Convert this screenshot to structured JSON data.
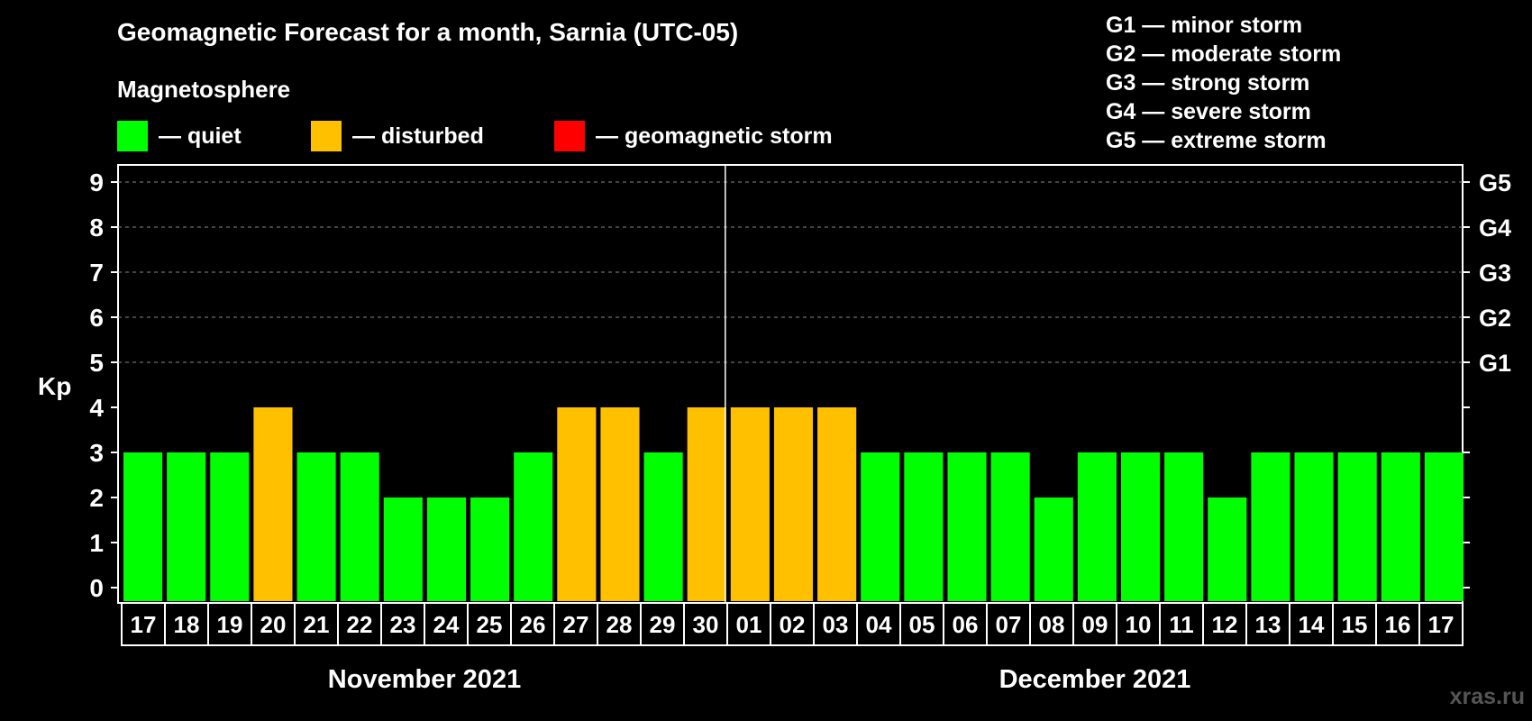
{
  "title": "Geomagnetic Forecast for a month, Sarnia (UTC-05)",
  "magnetosphere_label": "Magnetosphere",
  "legend": [
    {
      "label": "— quiet",
      "color": "#00ff00"
    },
    {
      "label": "— disturbed",
      "color": "#ffc000"
    },
    {
      "label": "— geomagnetic storm",
      "color": "#ff0000"
    }
  ],
  "g_scale": [
    "G1 — minor storm",
    "G2 — moderate storm",
    "G3 — strong storm",
    "G4 — severe storm",
    "G5 — extreme storm"
  ],
  "watermark": "xras.ru",
  "chart_data": {
    "type": "bar",
    "ylabel": "Kp",
    "ylim": [
      0,
      9
    ],
    "y_ticks": [
      0,
      1,
      2,
      3,
      4,
      5,
      6,
      7,
      8,
      9
    ],
    "right_axis_labels": [
      {
        "kp": 5,
        "label": "G1"
      },
      {
        "kp": 6,
        "label": "G2"
      },
      {
        "kp": 7,
        "label": "G3"
      },
      {
        "kp": 8,
        "label": "G4"
      },
      {
        "kp": 9,
        "label": "G5"
      }
    ],
    "grid": "dashed horizontal at Kp 5–9",
    "month_groups": [
      {
        "label": "November 2021",
        "start": 0,
        "end": 13
      },
      {
        "label": "December 2021",
        "start": 14,
        "end": 30
      }
    ],
    "categories": [
      "17",
      "18",
      "19",
      "20",
      "21",
      "22",
      "23",
      "24",
      "25",
      "26",
      "27",
      "28",
      "29",
      "30",
      "01",
      "02",
      "03",
      "04",
      "05",
      "06",
      "07",
      "08",
      "09",
      "10",
      "11",
      "12",
      "13",
      "14",
      "15",
      "16",
      "17"
    ],
    "values": [
      3,
      3,
      3,
      4,
      3,
      3,
      2,
      2,
      2,
      3,
      4,
      4,
      3,
      4,
      4,
      4,
      4,
      3,
      3,
      3,
      3,
      2,
      3,
      3,
      3,
      2,
      3,
      3,
      3,
      3,
      3
    ],
    "status": [
      "quiet",
      "quiet",
      "quiet",
      "disturbed",
      "quiet",
      "quiet",
      "quiet",
      "quiet",
      "quiet",
      "quiet",
      "disturbed",
      "disturbed",
      "quiet",
      "disturbed",
      "disturbed",
      "disturbed",
      "disturbed",
      "quiet",
      "quiet",
      "quiet",
      "quiet",
      "quiet",
      "quiet",
      "quiet",
      "quiet",
      "quiet",
      "quiet",
      "quiet",
      "quiet",
      "quiet",
      "quiet"
    ],
    "colors": {
      "quiet": "#00ff00",
      "disturbed": "#ffc000",
      "storm": "#ff0000"
    }
  }
}
